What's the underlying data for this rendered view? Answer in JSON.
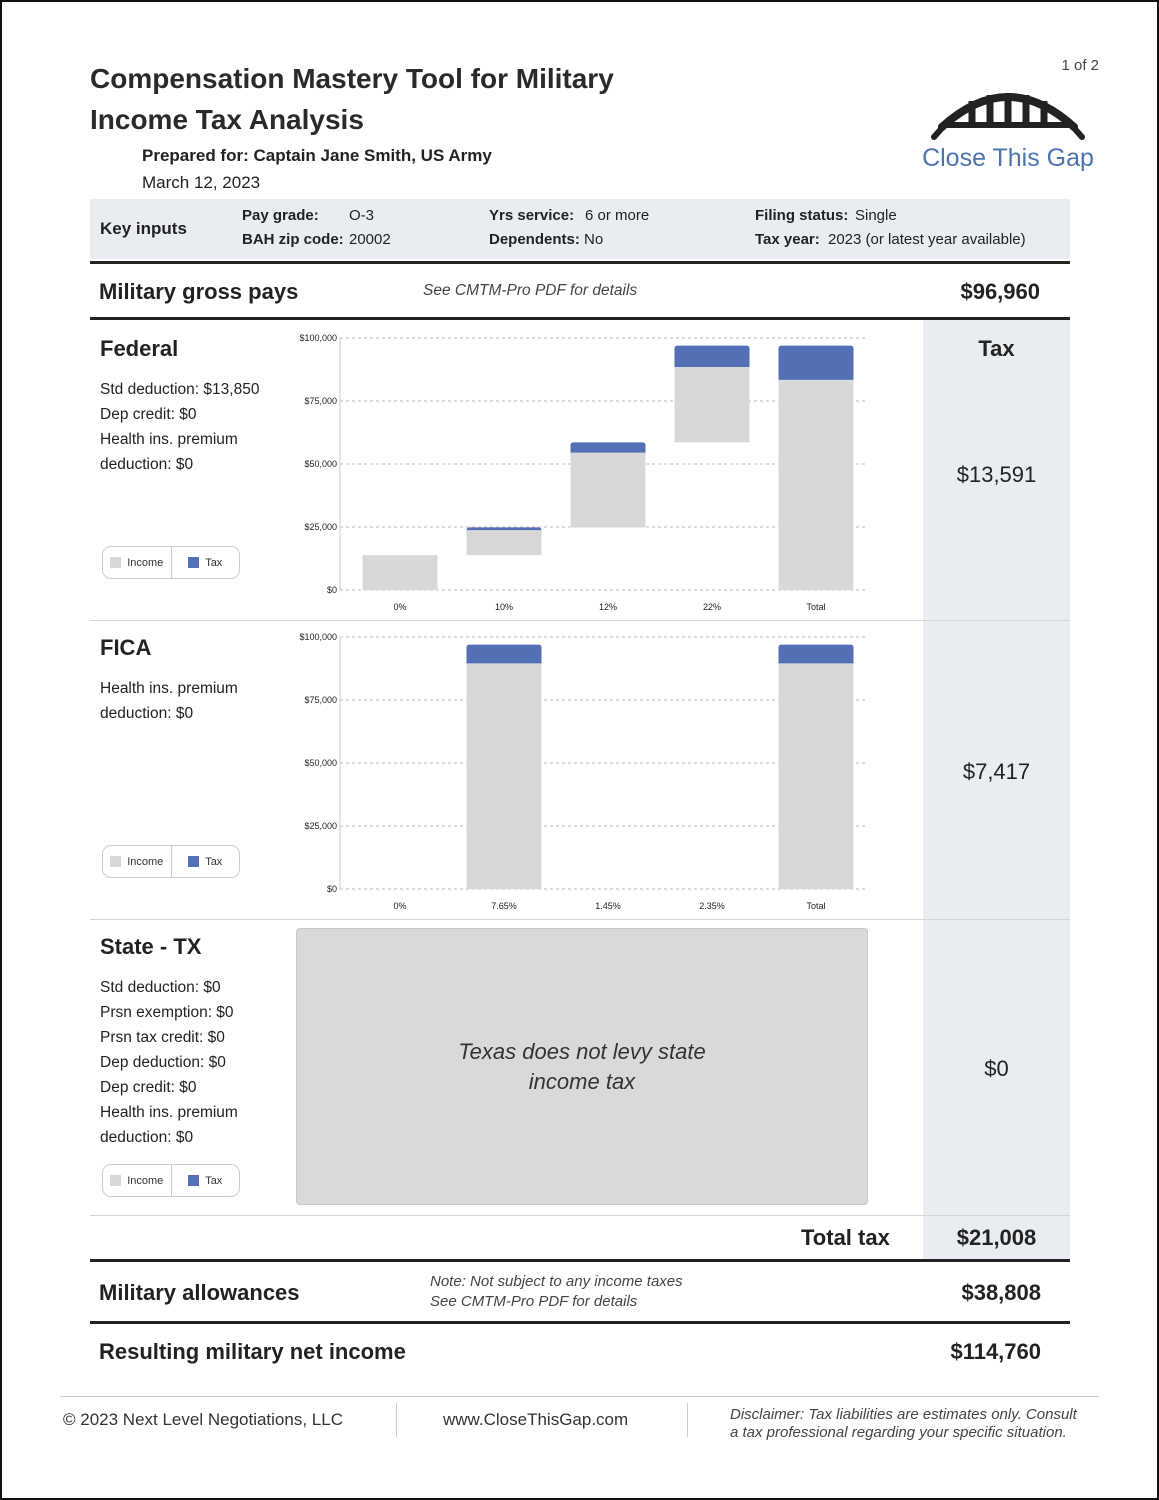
{
  "header": {
    "title_line1": "Compensation Mastery Tool for Military",
    "title_line2": "Income Tax Analysis",
    "prepared_for": "Prepared for: Captain Jane Smith, US Army",
    "date": "March 12, 2023",
    "page": "1 of 2",
    "logo_text": "Close This Gap"
  },
  "key_inputs": {
    "label": "Key inputs",
    "pay_grade_label": "Pay grade:",
    "pay_grade": "O-3",
    "bah_zip_label": "BAH zip code:",
    "bah_zip": "20002",
    "yrs_service_label": "Yrs service:",
    "yrs_service": "6 or more",
    "dependents_label": "Dependents:",
    "dependents": "No",
    "filing_status_label": "Filing status:",
    "filing_status": "Single",
    "tax_year_label": "Tax year:",
    "tax_year": "2023 (or latest year available)"
  },
  "gross": {
    "label": "Military gross pays",
    "note": "See CMTM-Pro PDF for details",
    "value": "$96,960"
  },
  "tax_header": "Tax",
  "federal": {
    "title": "Federal",
    "details": [
      "Std deduction: $13,850",
      "Dep credit: $0",
      "Health ins. premium",
      "deduction: $0"
    ],
    "tax": "$13,591"
  },
  "fica": {
    "title": "FICA",
    "details": [
      "Health ins. premium",
      "deduction: $0"
    ],
    "tax": "$7,417"
  },
  "state": {
    "title": "State - TX",
    "details": [
      "Std deduction: $0",
      "Prsn exemption: $0",
      "Prsn tax credit: $0",
      "Dep deduction: $0",
      "Dep credit: $0",
      "Health ins. premium",
      "deduction: $0"
    ],
    "message_line1": "Texas does not levy state",
    "message_line2": "income tax",
    "tax": "$0"
  },
  "legend": {
    "income": "Income",
    "tax": "Tax"
  },
  "colors": {
    "income": "#d9d8d9",
    "tax": "#5470b5"
  },
  "total": {
    "label": "Total tax",
    "value": "$21,008"
  },
  "allowances": {
    "label": "Military allowances",
    "note1": "Note: Not subject to any income taxes",
    "note2": "See CMTM-Pro PDF for details",
    "value": "$38,808"
  },
  "net": {
    "label": "Resulting military net income",
    "value": "$114,760"
  },
  "footer": {
    "copyright": "© 2023 Next Level Negotiations, LLC",
    "website": "www.CloseThisGap.com",
    "disclaimer1": "Disclaimer: Tax liabilities are estimates only. Consult",
    "disclaimer2": "a tax professional regarding your specific situation."
  },
  "chart_data": [
    {
      "type": "bar",
      "name": "federal",
      "title": "Federal",
      "categories": [
        "0%",
        "10%",
        "12%",
        "22%",
        "Total"
      ],
      "ylim": [
        0,
        100000
      ],
      "yticks": [
        "$0",
        "$25,000",
        "$50,000",
        "$75,000",
        "$100,000"
      ],
      "series": [
        {
          "name": "base",
          "values": [
            0,
            13850,
            24850,
            58575,
            0
          ]
        },
        {
          "name": "Income",
          "values": [
            13850,
            9900,
            29678,
            29940,
            83369
          ]
        },
        {
          "name": "Tax",
          "values": [
            0,
            1100,
            4047,
            8445,
            13591
          ]
        }
      ]
    },
    {
      "type": "bar",
      "name": "fica",
      "title": "FICA",
      "categories": [
        "0%",
        "7.65%",
        "1.45%",
        "2.35%",
        "Total"
      ],
      "ylim": [
        0,
        100000
      ],
      "yticks": [
        "$0",
        "$25,000",
        "$50,000",
        "$75,000",
        "$100,000"
      ],
      "series": [
        {
          "name": "base",
          "values": [
            0,
            0,
            0,
            0,
            0
          ]
        },
        {
          "name": "Income",
          "values": [
            0,
            89543,
            0,
            0,
            89543
          ]
        },
        {
          "name": "Tax",
          "values": [
            0,
            7417,
            0,
            0,
            7417
          ]
        }
      ]
    }
  ]
}
